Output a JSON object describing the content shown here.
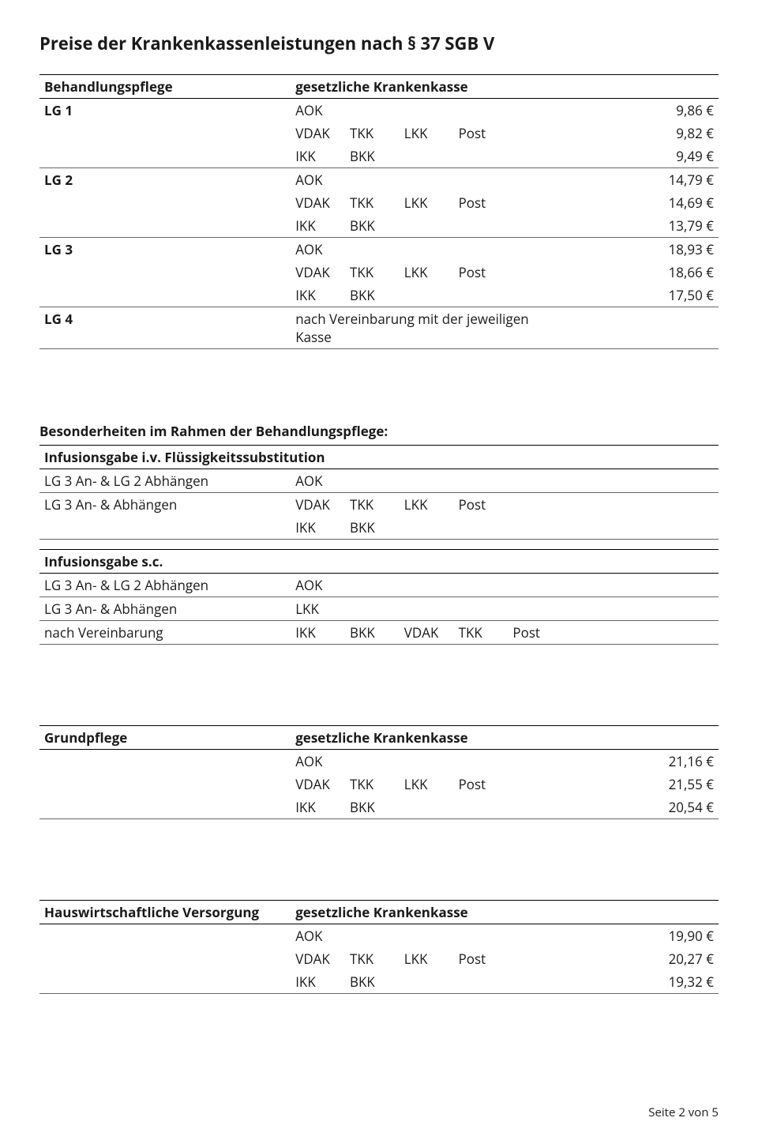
{
  "title": "Preise der Krankenkassenleistungen nach § 37 SGB V",
  "behandlungspflege": {
    "header_left": "Behandlungspflege",
    "header_right": "gesetzliche Krankenkasse",
    "groups": [
      {
        "lg": "LG 1",
        "rows": [
          {
            "k": [
              "AOK",
              "",
              "",
              "",
              ""
            ],
            "price": "9,86 €"
          },
          {
            "k": [
              "VDAK",
              "TKK",
              "LKK",
              "Post",
              ""
            ],
            "price": "9,82 €"
          },
          {
            "k": [
              "IKK",
              "BKK",
              "",
              "",
              ""
            ],
            "price": "9,49 €"
          }
        ]
      },
      {
        "lg": "LG 2",
        "rows": [
          {
            "k": [
              "AOK",
              "",
              "",
              "",
              ""
            ],
            "price": "14,79 €"
          },
          {
            "k": [
              "VDAK",
              "TKK",
              "LKK",
              "Post",
              ""
            ],
            "price": "14,69 €"
          },
          {
            "k": [
              "IKK",
              "BKK",
              "",
              "",
              ""
            ],
            "price": "13,79 €"
          }
        ]
      },
      {
        "lg": "LG 3",
        "rows": [
          {
            "k": [
              "AOK",
              "",
              "",
              "",
              ""
            ],
            "price": "18,93 €"
          },
          {
            "k": [
              "VDAK",
              "TKK",
              "LKK",
              "Post",
              ""
            ],
            "price": "18,66 €"
          },
          {
            "k": [
              "IKK",
              "BKK",
              "",
              "",
              ""
            ],
            "price": "17,50 €"
          }
        ]
      },
      {
        "lg": "LG 4",
        "rows": [
          {
            "k": [
              "nach Vereinbarung mit der jeweiligen Kasse",
              "",
              "",
              "",
              ""
            ],
            "price": ""
          }
        ]
      }
    ]
  },
  "besonderheiten_title": "Besonderheiten im Rahmen der Behandlungspflege:",
  "infusion_iv": {
    "title": "Infusionsgabe i.v. Flüssigkeitssubstitution",
    "rows": [
      {
        "label": "LG 3 An- & LG 2 Abhängen",
        "k": [
          "AOK",
          "",
          "",
          "",
          ""
        ]
      },
      {
        "label": "LG 3 An- & Abhängen",
        "k": [
          "VDAK",
          "TKK",
          "LKK",
          "Post",
          ""
        ]
      },
      {
        "label": "",
        "k": [
          "IKK",
          "BKK",
          "",
          "",
          ""
        ]
      }
    ]
  },
  "infusion_sc": {
    "title": "Infusionsgabe s.c.",
    "rows": [
      {
        "label": "LG 3 An- & LG 2 Abhängen",
        "k": [
          "AOK",
          "",
          "",
          "",
          ""
        ]
      },
      {
        "label": "LG 3 An- & Abhängen",
        "k": [
          "LKK",
          "",
          "",
          "",
          ""
        ]
      },
      {
        "label": "nach Vereinbarung",
        "k": [
          "IKK",
          "BKK",
          "VDAK",
          "TKK",
          "Post"
        ]
      }
    ]
  },
  "grundpflege": {
    "header_left": "Grundpflege",
    "header_right": "gesetzliche Krankenkasse",
    "rows": [
      {
        "k": [
          "AOK",
          "",
          "",
          "",
          ""
        ],
        "price": "21,16 €"
      },
      {
        "k": [
          "VDAK",
          "TKK",
          "LKK",
          "Post",
          ""
        ],
        "price": "21,55 €"
      },
      {
        "k": [
          "IKK",
          "BKK",
          "",
          "",
          ""
        ],
        "price": "20,54 €"
      }
    ]
  },
  "hauswirtschaft": {
    "header_left": "Hauswirtschaftliche Versorgung",
    "header_right": "gesetzliche Krankenkasse",
    "rows": [
      {
        "k": [
          "AOK",
          "",
          "",
          "",
          ""
        ],
        "price": "19,90 €"
      },
      {
        "k": [
          "VDAK",
          "TKK",
          "LKK",
          "Post",
          ""
        ],
        "price": "20,27 €"
      },
      {
        "k": [
          "IKK",
          "BKK",
          "",
          "",
          ""
        ],
        "price": "19,32 €"
      }
    ]
  },
  "footer": "Seite 2 von 5"
}
